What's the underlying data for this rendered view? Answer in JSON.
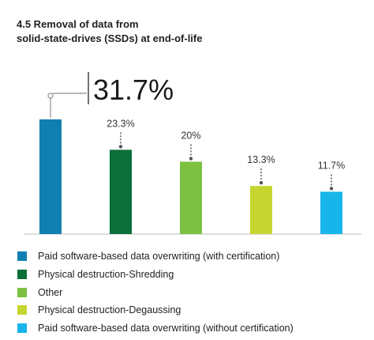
{
  "title_line1": "4.5 Removal of data from",
  "title_line2": "solid-state-drives (SSDs) at end-of-life",
  "chart_data": {
    "type": "bar",
    "categories": [
      "Paid software-based data overwriting (with certification)",
      "Physical destruction-Shredding",
      "Other",
      "Physical destruction-Degaussing",
      "Paid software-based data overwriting (without certification)"
    ],
    "values": [
      31.7,
      23.3,
      20,
      13.3,
      11.7
    ],
    "labels": [
      "31.7%",
      "23.3%",
      "20%",
      "13.3%",
      "11.7%"
    ],
    "colors": [
      "#0f7fb1",
      "#0c6f3a",
      "#7cc142",
      "#c6d631",
      "#18b5ea"
    ],
    "legend_position": "bottom",
    "grid": false,
    "ylim": [
      0,
      31.7
    ]
  }
}
